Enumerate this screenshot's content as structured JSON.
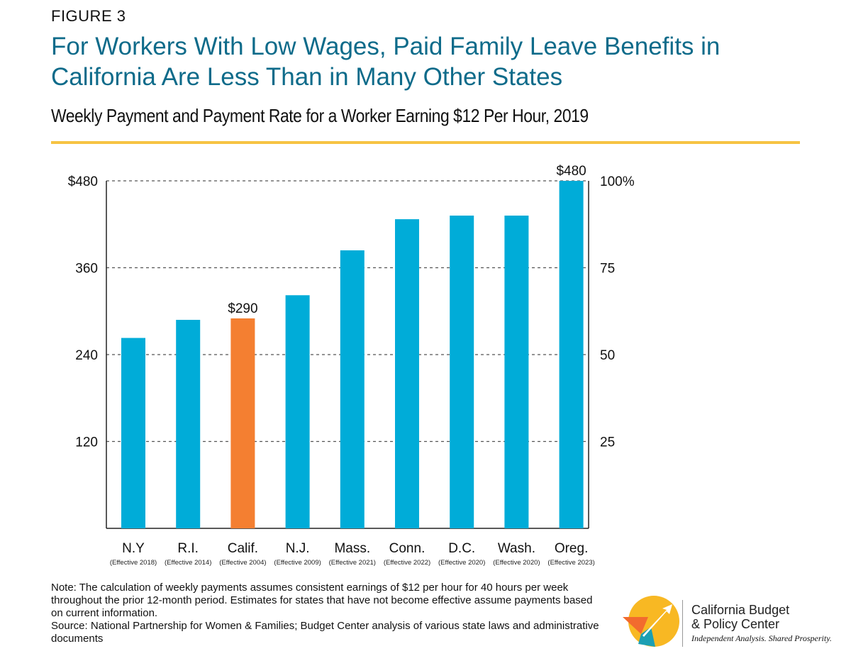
{
  "figure_label": "FIGURE 3",
  "title": "For Workers With Low Wages, Paid Family Leave Benefits in California Are Less Than in Many Other States",
  "subtitle": "Weekly Payment and Payment Rate for a Worker Earning $12 Per Hour, 2019",
  "chart_data": {
    "type": "bar",
    "categories": [
      "N.Y",
      "R.I.",
      "Calif.",
      "N.J.",
      "Mass.",
      "Conn.",
      "D.C.",
      "Wash.",
      "Oreg."
    ],
    "category_notes": [
      "(Effective 2018)",
      "(Effective 2014)",
      "(Effective 2004)",
      "(Effective 2009)",
      "(Effective 2021)",
      "(Effective 2022)",
      "(Effective 2020)",
      "(Effective 2020)",
      "(Effective 2023)"
    ],
    "values": [
      263,
      288,
      290,
      322,
      384,
      427,
      432,
      432,
      480
    ],
    "data_labels": {
      "2": "$290",
      "8": "$480"
    },
    "bar_color": "#00acd8",
    "highlight_index": 2,
    "highlight_color": "#f47f31",
    "ylim": [
      0,
      480
    ],
    "left_ticks": [
      {
        "value": 120,
        "label": "120"
      },
      {
        "value": 240,
        "label": "240"
      },
      {
        "value": 360,
        "label": "360"
      },
      {
        "value": 480,
        "label": "$480"
      }
    ],
    "right_ticks": [
      {
        "value": 120,
        "label": "25"
      },
      {
        "value": 240,
        "label": "50"
      },
      {
        "value": 360,
        "label": "75"
      },
      {
        "value": 480,
        "label": "100%"
      }
    ],
    "grid": "dashed",
    "xlabel": "",
    "ylabel": ""
  },
  "note": "Note: The calculation of weekly payments assumes consistent earnings of $12 per hour for 40 hours per week throughout the prior 12-month period. Estimates for states that have not become effective assume payments based on current information.",
  "source": "Source: National Partnership for Women & Families; Budget Center analysis of various state laws and administrative documents",
  "logo": {
    "name_line1": "California Budget",
    "name_line2": "& Policy Center",
    "tagline": "Independent Analysis. Shared Prosperity.",
    "colors": {
      "yellow": "#f8b823",
      "orange": "#f26b2e",
      "teal": "#1c9fb3"
    }
  }
}
